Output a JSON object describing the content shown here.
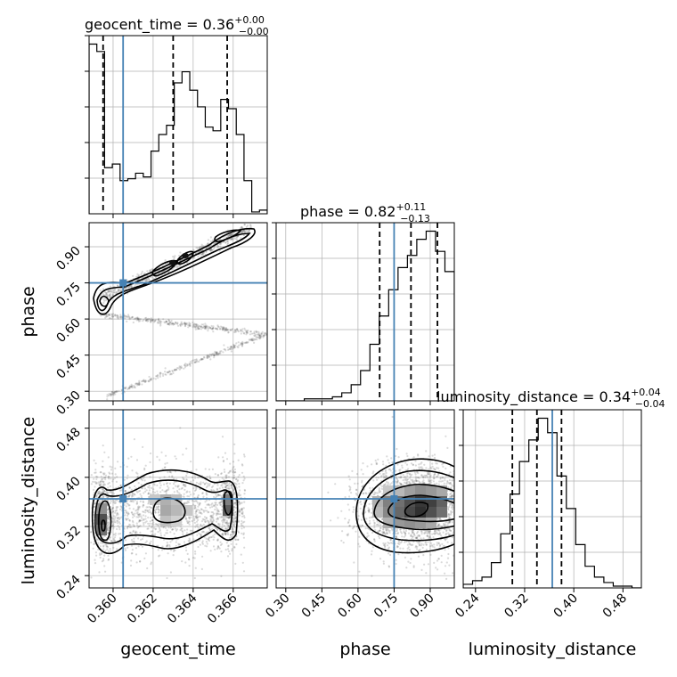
{
  "colors": {
    "truth": "#4682b4",
    "line": "#000000",
    "grid": "#b0b0b0"
  },
  "chart_data": {
    "type": "corner",
    "truths": {
      "geocent_time": 0.3605,
      "phase": 0.75,
      "luminosity_distance": 0.365
    },
    "axis_labels": {
      "geocent_time": "geocent_time",
      "phase": "phase",
      "luminosity_distance": "luminosity_distance"
    },
    "panel_titles": [
      {
        "label": "geocent_time = 0.36",
        "plus": "+0.00",
        "minus": "−0.00"
      },
      {
        "label": "phase = 0.82",
        "plus": "+0.11",
        "minus": "−0.13"
      },
      {
        "label": "luminosity_distance = 0.34",
        "plus": "+0.04",
        "minus": "−0.04"
      }
    ],
    "ticks": {
      "geocent_time": [
        "0.360",
        "0.362",
        "0.364",
        "0.366"
      ],
      "phase": [
        "0.30",
        "0.45",
        "0.60",
        "0.75",
        "0.90"
      ],
      "luminosity_distance": [
        "0.24",
        "0.32",
        "0.40",
        "0.48"
      ]
    },
    "hist_geocent_time": {
      "range": [
        0.3588,
        0.3677
      ],
      "counts": [
        92,
        88,
        25,
        27,
        18,
        19,
        22,
        20,
        34,
        43,
        48,
        71,
        77,
        67,
        58,
        47,
        45,
        62,
        57,
        43,
        18,
        1,
        2
      ],
      "quantiles": [
        0.3595,
        0.363,
        0.3657
      ]
    },
    "hist_phase": {
      "range": [
        0.26,
        1.0
      ],
      "counts": [
        0,
        0,
        0,
        1,
        1,
        1,
        2,
        4,
        8,
        15,
        28,
        42,
        55,
        66,
        72,
        80,
        84,
        74,
        64
      ],
      "quantiles": [
        0.69,
        0.82,
        0.93
      ]
    },
    "hist_luminosity_distance": {
      "range": [
        0.22,
        0.51
      ],
      "counts": [
        2,
        4,
        6,
        14,
        30,
        52,
        70,
        82,
        94,
        86,
        62,
        44,
        24,
        12,
        6,
        3,
        1,
        1,
        0
      ],
      "quantiles": [
        0.3,
        0.34,
        0.38
      ]
    }
  }
}
